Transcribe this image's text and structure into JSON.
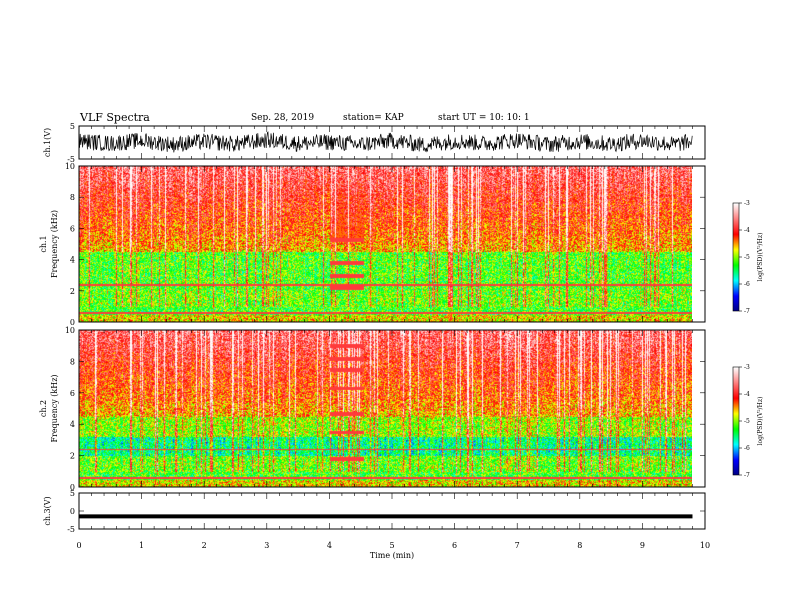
{
  "header": {
    "title": "VLF Spectra",
    "date": "Sep. 28, 2019",
    "station": "station= KAP",
    "start_time": "start  UT =   10: 10: 1"
  },
  "chart_data": [
    {
      "type": "line",
      "panel": "ch1-waveform",
      "ylabel": "ch.1(V)",
      "ylim": [
        -5,
        5
      ],
      "yticks": [
        "5",
        "-5"
      ],
      "xlim": [
        0,
        10
      ],
      "description_series": "noisy waveform mostly between -3 and 3 V",
      "x": [
        0,
        0.5,
        1,
        1.5,
        2,
        2.5,
        3,
        3.5,
        4,
        4.5,
        5,
        5.5,
        6,
        6.5,
        7,
        7.5,
        8,
        8.5,
        9,
        9.5,
        9.8
      ],
      "y": [
        1.5,
        -1,
        2,
        -2,
        1,
        -1.5,
        2.5,
        -1,
        0.5,
        -2,
        2,
        -2.5,
        1.5,
        -1,
        2.5,
        -2,
        1,
        -1.5,
        2,
        -2,
        1
      ]
    },
    {
      "type": "heatmap",
      "panel": "ch1-spectrogram",
      "ylabel": "ch.1\nFrequency (kHz)",
      "ylim": [
        0,
        10
      ],
      "yticks": [
        "0",
        "2",
        "4",
        "6",
        "8",
        "10"
      ],
      "xlim": [
        0,
        10
      ],
      "data_end_min": 9.8,
      "colorbar": {
        "label": "log(PSD)(V²/Hz)",
        "ticks": [
          "-3",
          "-4",
          "-5",
          "-6",
          "-7"
        ],
        "range": [
          -7,
          -3
        ]
      }
    },
    {
      "type": "heatmap",
      "panel": "ch2-spectrogram",
      "ylabel": "ch.2\nFrequency (kHz)",
      "ylim": [
        0,
        10
      ],
      "yticks": [
        "0",
        "2",
        "4",
        "6",
        "8",
        "10"
      ],
      "xlim": [
        0,
        10
      ],
      "data_end_min": 9.8,
      "colorbar": {
        "label": "log(PSD)(V²/Hz)",
        "ticks": [
          "-3",
          "-4",
          "-5",
          "-6",
          "-7"
        ],
        "range": [
          -7,
          -3
        ]
      }
    },
    {
      "type": "line",
      "panel": "ch3-waveform",
      "ylabel": "ch.3(V)",
      "ylim": [
        -5,
        5
      ],
      "yticks": [
        "5",
        "0",
        "-5"
      ],
      "xlim": [
        0,
        10
      ],
      "x": [
        0,
        9.8
      ],
      "y": [
        -1.5,
        -1.5
      ]
    }
  ],
  "xaxis": {
    "label": "Time (min)",
    "ticks": [
      "0",
      "1",
      "2",
      "3",
      "4",
      "5",
      "6",
      "7",
      "8",
      "9",
      "10"
    ]
  },
  "colors": {
    "colormap": [
      "#00007f",
      "#0000ff",
      "#00ffff",
      "#00ff00",
      "#ffff00",
      "#ff0000",
      "#ff8080",
      "#ffffff"
    ],
    "line": "#000000"
  }
}
